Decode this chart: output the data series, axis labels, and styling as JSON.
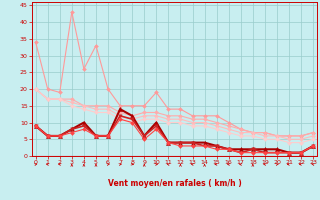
{
  "xlabel": "Vent moyen/en rafales ( km/h )",
  "bg_color": "#c8eef0",
  "grid_color": "#99cccc",
  "x_ticks": [
    0,
    1,
    2,
    3,
    4,
    5,
    6,
    7,
    8,
    9,
    10,
    11,
    12,
    13,
    14,
    15,
    16,
    17,
    18,
    19,
    20,
    21,
    22,
    23
  ],
  "y_ticks": [
    0,
    5,
    10,
    15,
    20,
    25,
    30,
    35,
    40,
    45
  ],
  "xlim": [
    -0.3,
    23.3
  ],
  "ylim": [
    0,
    46
  ],
  "lines": [
    {
      "x": [
        0,
        1,
        2,
        3,
        4,
        5,
        6,
        7,
        8,
        9,
        10,
        11,
        12,
        13,
        14,
        15,
        16,
        17,
        18,
        19,
        20,
        21,
        22,
        23
      ],
      "y": [
        34,
        20,
        19,
        43,
        26,
        33,
        20,
        15,
        15,
        15,
        19,
        14,
        14,
        12,
        12,
        12,
        10,
        8,
        7,
        7,
        6,
        6,
        6,
        7
      ],
      "color": "#ff9999",
      "lw": 0.8,
      "marker": "D",
      "ms": 2.0
    },
    {
      "x": [
        0,
        1,
        2,
        3,
        4,
        5,
        6,
        7,
        8,
        9,
        10,
        11,
        12,
        13,
        14,
        15,
        16,
        17,
        18,
        19,
        20,
        21,
        22,
        23
      ],
      "y": [
        20,
        17,
        17,
        17,
        15,
        15,
        15,
        13,
        12,
        13,
        13,
        12,
        12,
        11,
        11,
        10,
        9,
        8,
        7,
        7,
        6,
        6,
        6,
        7
      ],
      "color": "#ffaaaa",
      "lw": 0.8,
      "marker": "D",
      "ms": 2.0
    },
    {
      "x": [
        0,
        1,
        2,
        3,
        4,
        5,
        6,
        7,
        8,
        9,
        10,
        11,
        12,
        13,
        14,
        15,
        16,
        17,
        18,
        19,
        20,
        21,
        22,
        23
      ],
      "y": [
        20,
        17,
        17,
        16,
        15,
        14,
        14,
        12,
        11,
        12,
        12,
        11,
        11,
        10,
        10,
        9,
        8,
        7,
        7,
        6,
        6,
        5,
        5,
        6
      ],
      "color": "#ffbbbb",
      "lw": 0.8,
      "marker": "D",
      "ms": 2.0
    },
    {
      "x": [
        0,
        1,
        2,
        3,
        4,
        5,
        6,
        7,
        8,
        9,
        10,
        11,
        12,
        13,
        14,
        15,
        16,
        17,
        18,
        19,
        20,
        21,
        22,
        23
      ],
      "y": [
        20,
        17,
        17,
        15,
        14,
        13,
        13,
        11,
        10,
        11,
        11,
        10,
        10,
        9,
        9,
        8,
        7,
        6,
        6,
        5,
        5,
        4,
        4,
        5
      ],
      "color": "#ffcccc",
      "lw": 0.8,
      "marker": "D",
      "ms": 2.0
    },
    {
      "x": [
        0,
        1,
        2,
        3,
        4,
        5,
        6,
        7,
        8,
        9,
        10,
        11,
        12,
        13,
        14,
        15,
        16,
        17,
        18,
        19,
        20,
        21,
        22,
        23
      ],
      "y": [
        9,
        6,
        6,
        8,
        10,
        6,
        6,
        14,
        12,
        6,
        10,
        4,
        4,
        4,
        4,
        3,
        2,
        2,
        2,
        2,
        2,
        1,
        1,
        3
      ],
      "color": "#aa0000",
      "lw": 1.5,
      "marker": "^",
      "ms": 3.0
    },
    {
      "x": [
        0,
        1,
        2,
        3,
        4,
        5,
        6,
        7,
        8,
        9,
        10,
        11,
        12,
        13,
        14,
        15,
        16,
        17,
        18,
        19,
        20,
        21,
        22,
        23
      ],
      "y": [
        9,
        6,
        6,
        8,
        9,
        6,
        6,
        12,
        11,
        6,
        9,
        4,
        4,
        4,
        3,
        3,
        2,
        1,
        2,
        1,
        1,
        1,
        1,
        3
      ],
      "color": "#cc2222",
      "lw": 1.2,
      "marker": "v",
      "ms": 2.5
    },
    {
      "x": [
        0,
        1,
        2,
        3,
        4,
        5,
        6,
        7,
        8,
        9,
        10,
        11,
        12,
        13,
        14,
        15,
        16,
        17,
        18,
        19,
        20,
        21,
        22,
        23
      ],
      "y": [
        9,
        6,
        6,
        7,
        8,
        6,
        6,
        11,
        10,
        5,
        8,
        4,
        3,
        3,
        3,
        2,
        2,
        1,
        1,
        1,
        1,
        1,
        1,
        3
      ],
      "color": "#ff4444",
      "lw": 0.8,
      "marker": "D",
      "ms": 2.0
    }
  ],
  "arrows_angles_deg": [
    45,
    315,
    315,
    0,
    0,
    0,
    45,
    45,
    135,
    0,
    45,
    315,
    0,
    315,
    0,
    270,
    315,
    315,
    0,
    315,
    45,
    270,
    270,
    315
  ],
  "tick_color": "#cc0000",
  "label_color": "#cc0000",
  "axis_color": "#cc0000"
}
